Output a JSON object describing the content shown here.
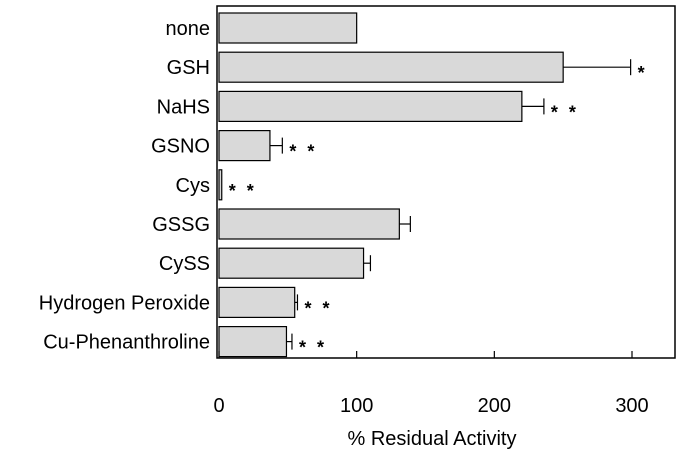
{
  "chart_data": {
    "type": "bar",
    "orientation": "horizontal",
    "categories": [
      "none",
      "GSH",
      "NaHS",
      "GSNO",
      "Cys",
      "GSSG",
      "CySS",
      "Hydrogen Peroxide",
      "Cu-Phenanthroline"
    ],
    "values": [
      100,
      250,
      220,
      37,
      2,
      131,
      105,
      55,
      49
    ],
    "errors": [
      0,
      49,
      16,
      9,
      0,
      8,
      5,
      2,
      4
    ],
    "significance": [
      "",
      "*",
      "* *",
      "* *",
      "* *",
      "",
      "",
      "* *",
      "* *"
    ],
    "xlabel": "% Residual Activity",
    "ylabel": "",
    "title": "",
    "xlim": [
      0,
      330
    ],
    "xticks": [
      0,
      100,
      200,
      300
    ],
    "grid": false,
    "legend": "none",
    "colors": {
      "bar_fill": "#d9d9d9",
      "bar_stroke": "#000000",
      "axis": "#000000"
    }
  }
}
